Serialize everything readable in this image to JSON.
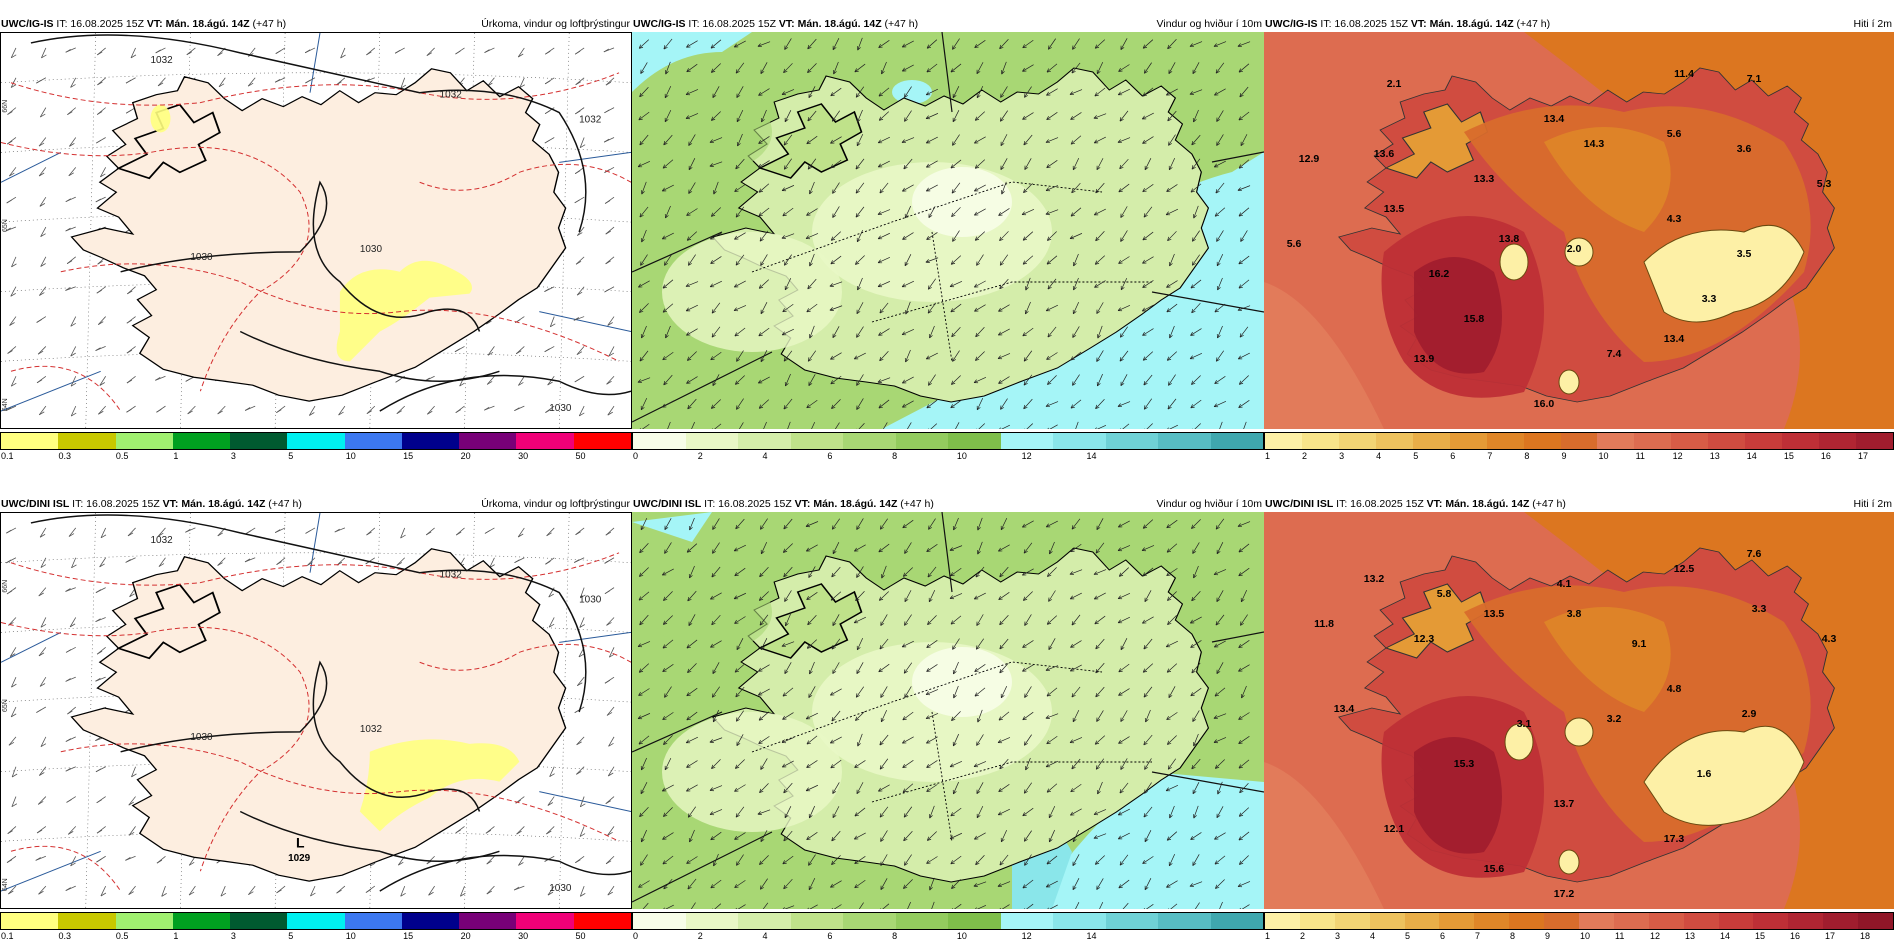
{
  "rows": [
    {
      "model": "UWC/IG-IS",
      "it_label": "IT: 16.08.2025 15Z",
      "vt_label": "VT: Mán. 18.ágú. 14Z",
      "lead": "(+47 h)",
      "precip_title": "Úrkoma, vindur og loftþrýstingur",
      "wind_title": "Vindur og hviður í 10m",
      "temp_title": "Hiti í 2m",
      "isobars": [
        "1032",
        "1032",
        "1030",
        "1030",
        "1032",
        "1030"
      ],
      "temp_labels": [
        "2.1",
        "11.4",
        "7.1",
        "13.4",
        "14.3",
        "5.6",
        "3.6",
        "12.9",
        "13.6",
        "13.3",
        "5.3",
        "13.5",
        "4.3",
        "13.8",
        "2.0",
        "3.5",
        "5.6",
        "16.2",
        "15.8",
        "3.3",
        "13.4",
        "7.4",
        "13.9",
        "16.0"
      ],
      "temp_ticks": [
        "1",
        "2",
        "3",
        "4",
        "5",
        "6",
        "7",
        "8",
        "9",
        "10",
        "11",
        "12",
        "13",
        "14",
        "15",
        "16",
        "17"
      ]
    },
    {
      "model": "UWC/DINI ISL",
      "it_label": "IT: 16.08.2025 15Z",
      "vt_label": "VT: Mán. 18.ágú. 14Z",
      "lead": "(+47 h)",
      "precip_title": "Úrkoma, vindur og loftþrýstingur",
      "wind_title": "Vindur og hviður í 10m",
      "temp_title": "Hiti í 2m",
      "isobars": [
        "1032",
        "1032",
        "1030",
        "1030",
        "1030",
        "1032"
      ],
      "low_label": "L",
      "low_value": "1029",
      "temp_labels": [
        "7.6",
        "12.5",
        "13.2",
        "5.8",
        "4.1",
        "3.3",
        "11.8",
        "13.5",
        "3.8",
        "12.3",
        "9.1",
        "4.3",
        "4.8",
        "13.4",
        "3.1",
        "3.2",
        "2.9",
        "15.3",
        "1.6",
        "13.7",
        "12.1",
        "17.3",
        "15.6",
        "17.2"
      ],
      "temp_ticks": [
        "1",
        "2",
        "3",
        "4",
        "5",
        "6",
        "7",
        "8",
        "9",
        "10",
        "11",
        "12",
        "13",
        "14",
        "15",
        "16",
        "17",
        "18"
      ]
    }
  ],
  "precip_scale": {
    "ticks": [
      "0.1",
      "0.3",
      "0.5",
      "1",
      "3",
      "5",
      "10",
      "15",
      "20",
      "30",
      "50"
    ],
    "colors": [
      "#ffff80",
      "#c8c800",
      "#a0f070",
      "#00a020",
      "#005a30",
      "#00f0f0",
      "#3c78f0",
      "#00008c",
      "#780078",
      "#f00078",
      "#ff0000"
    ]
  },
  "wind_scale": {
    "ticks": [
      "0",
      "2",
      "4",
      "6",
      "8",
      "10",
      "12",
      "14"
    ],
    "colors": [
      "#f7fde8",
      "#e9f7c6",
      "#d4edaa",
      "#bfe28a",
      "#a8d774",
      "#93cb5e",
      "#7fbe4a",
      "#a5f5f7",
      "#8ae6ea",
      "#6fd1d6",
      "#57bdc4",
      "#3fa7ae"
    ]
  },
  "temp_colors": [
    "#fdf0a6",
    "#f8e48a",
    "#f2d474",
    "#edc25e",
    "#e8ae48",
    "#e49a36",
    "#df8628",
    "#dc7620",
    "#d86c2c",
    "#e27b5a",
    "#dd6c50",
    "#d75c46",
    "#d04c40",
    "#c83c3a",
    "#be2f36",
    "#b02532",
    "#a01d2e",
    "#901628"
  ],
  "lat_labels": [
    "66N",
    "65N",
    "64N"
  ]
}
